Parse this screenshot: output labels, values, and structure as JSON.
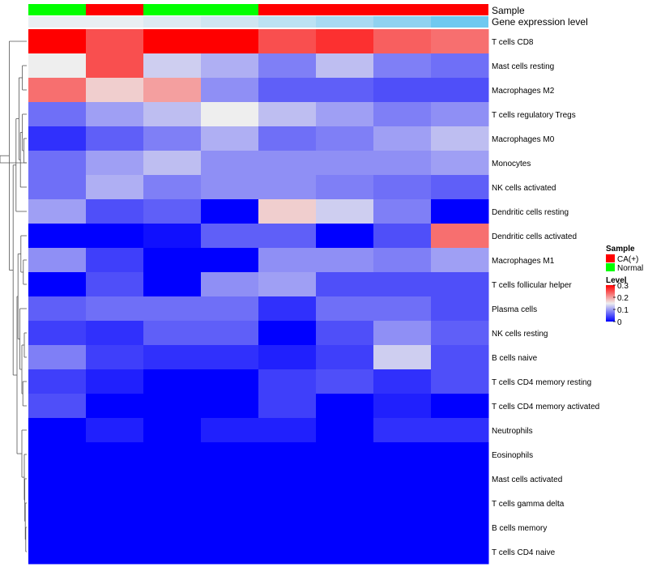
{
  "chart_data": {
    "type": "heatmap",
    "title": "",
    "rows": [
      "T cells CD8",
      "Mast cells resting",
      "Macrophages M2",
      "T cells regulatory  Tregs",
      "Macrophages M0",
      "Monocytes",
      "NK cells activated",
      "Dendritic cells resting",
      "Dendritic cells activated",
      "Macrophages M1",
      "T cells follicular helper",
      "Plasma cells",
      "NK cells resting",
      "B cells naive",
      "T cells CD4 memory resting",
      "T cells CD4 memory activated",
      "Neutrophils",
      "Eosinophils",
      "Mast cells activated",
      "T cells gamma delta",
      "B cells memory",
      "T cells CD4 naive"
    ],
    "values": [
      [
        0.3,
        0.25,
        0.3,
        0.3,
        0.25,
        0.27,
        0.24,
        0.23
      ],
      [
        0.15,
        0.25,
        0.13,
        0.11,
        0.08,
        0.12,
        0.08,
        0.07
      ],
      [
        0.23,
        0.17,
        0.2,
        0.09,
        0.06,
        0.06,
        0.05,
        0.05
      ],
      [
        0.07,
        0.1,
        0.12,
        0.15,
        0.12,
        0.1,
        0.08,
        0.09
      ],
      [
        0.03,
        0.06,
        0.08,
        0.11,
        0.07,
        0.08,
        0.1,
        0.12
      ],
      [
        0.07,
        0.1,
        0.12,
        0.09,
        0.09,
        0.09,
        0.09,
        0.1
      ],
      [
        0.07,
        0.11,
        0.08,
        0.09,
        0.09,
        0.08,
        0.07,
        0.06
      ],
      [
        0.1,
        0.05,
        0.06,
        0.0,
        0.17,
        0.13,
        0.08,
        0.0
      ],
      [
        0.0,
        0.0,
        0.01,
        0.06,
        0.06,
        0.0,
        0.05,
        0.23
      ],
      [
        0.09,
        0.04,
        0.0,
        0.0,
        0.09,
        0.09,
        0.08,
        0.1
      ],
      [
        0.0,
        0.05,
        0.0,
        0.09,
        0.1,
        0.05,
        0.05,
        0.05
      ],
      [
        0.06,
        0.07,
        0.07,
        0.07,
        0.03,
        0.07,
        0.07,
        0.05
      ],
      [
        0.04,
        0.03,
        0.06,
        0.06,
        0.0,
        0.05,
        0.09,
        0.06
      ],
      [
        0.08,
        0.04,
        0.03,
        0.03,
        0.02,
        0.04,
        0.13,
        0.05
      ],
      [
        0.04,
        0.02,
        0.0,
        0.0,
        0.04,
        0.05,
        0.03,
        0.05
      ],
      [
        0.05,
        0.0,
        0.0,
        0.0,
        0.04,
        0.0,
        0.02,
        0.0
      ],
      [
        0.0,
        0.02,
        0.0,
        0.02,
        0.02,
        0.0,
        0.03,
        0.03
      ],
      [
        0.0,
        0.0,
        0.0,
        0.0,
        0.0,
        0.0,
        0.0,
        0.0
      ],
      [
        0.0,
        0.0,
        0.0,
        0.0,
        0.0,
        0.0,
        0.0,
        0.0
      ],
      [
        0.0,
        0.0,
        0.0,
        0.0,
        0.0,
        0.0,
        0.0,
        0.0
      ],
      [
        0.0,
        0.0,
        0.0,
        0.0,
        0.0,
        0.0,
        0.0,
        0.0
      ],
      [
        0.0,
        0.0,
        0.0,
        0.0,
        0.0,
        0.0,
        0.0,
        0.0
      ]
    ],
    "value_range": [
      0,
      0.3
    ],
    "color_scale": {
      "low": "#0000FF",
      "mid": "#EEEEEE",
      "high": "#FF0000",
      "mid_value": 0.15
    },
    "annotations": [
      {
        "label": "Sample",
        "values": [
          "Normal",
          "CA(+)",
          "Normal",
          "Normal",
          "CA(+)",
          "CA(+)",
          "CA(+)",
          "CA(+)"
        ]
      },
      {
        "label": "Gene expression level",
        "colors": [
          "#E9EFF3",
          "#E9EFF3",
          "#DDEAF2",
          "#CFE5F1",
          "#BCE2F3",
          "#A8DAF2",
          "#8FD2F0",
          "#6FC9F0"
        ]
      }
    ],
    "legend": {
      "sample_title": "Sample",
      "sample_items": [
        {
          "label": "CA(+)",
          "color": "#FF0000"
        },
        {
          "label": "Normal",
          "color": "#00FF00"
        }
      ],
      "level_title": "Level",
      "level_ticks": [
        {
          "label": "0.3",
          "value": 0.3
        },
        {
          "label": "0.2",
          "value": 0.2
        },
        {
          "label": "0.1",
          "value": 0.1
        },
        {
          "label": "0",
          "value": 0
        }
      ],
      "placement": "right"
    },
    "dendrogram": "rows"
  },
  "colors": {
    "ca_plus": "#FF0000",
    "normal": "#00FF00",
    "dendrogram_line": "#555555"
  }
}
